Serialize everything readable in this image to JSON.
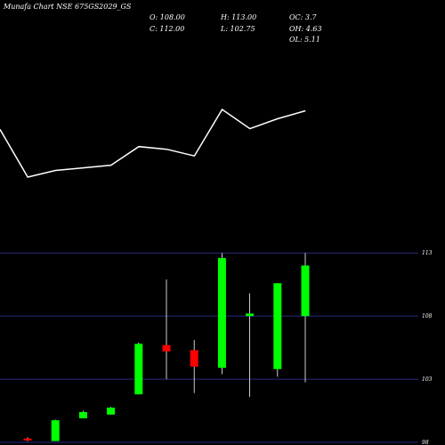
{
  "header": {
    "title": "Munafa Chart NSE 675GS2029_GS",
    "stats": [
      "O: 108.00",
      "H: 113.00",
      "OC: 3.7",
      "C: 112.00",
      "L: 102.75",
      "OH: 4.63",
      "",
      "",
      "OL: 5.11"
    ]
  },
  "colors": {
    "background": "#000000",
    "line": "#ffffff",
    "up": "#00ff00",
    "down": "#ff0000",
    "grid": "#2a2a80",
    "text": "#ffffff"
  },
  "chart_data": [
    {
      "type": "line",
      "title": "",
      "xlabel": "",
      "ylabel": "",
      "series": [
        {
          "values": [
            103.2,
            96.0,
            97.0,
            97.4,
            97.8,
            100.6,
            100.2,
            99.2,
            106.2,
            103.3,
            104.8,
            106.0
          ]
        }
      ]
    },
    {
      "type": "candlestick",
      "title": "",
      "xlabel": "",
      "ylabel": "",
      "ylim": [
        98,
        114
      ],
      "yticks": [
        113,
        108,
        103,
        98
      ],
      "ytick_labels": [
        "113",
        "108",
        "103",
        "98"
      ],
      "candles": [
        {
          "open": 98.3,
          "high": 98.4,
          "low": 98.1,
          "close": 98.15,
          "dir": "down"
        },
        {
          "open": 98.1,
          "high": 99.8,
          "low": 98.1,
          "close": 99.75,
          "dir": "up"
        },
        {
          "open": 99.9,
          "high": 100.5,
          "low": 99.9,
          "close": 100.4,
          "dir": "up"
        },
        {
          "open": 100.2,
          "high": 100.8,
          "low": 100.2,
          "close": 100.75,
          "dir": "up"
        },
        {
          "open": 101.8,
          "high": 105.9,
          "low": 101.8,
          "close": 105.8,
          "dir": "up"
        },
        {
          "open": 105.7,
          "high": 110.9,
          "low": 103.0,
          "close": 105.2,
          "dir": "down"
        },
        {
          "open": 105.3,
          "high": 106.1,
          "low": 101.9,
          "close": 104.0,
          "dir": "down"
        },
        {
          "open": 103.9,
          "high": 113.0,
          "low": 103.4,
          "close": 112.6,
          "dir": "up"
        },
        {
          "open": 108.0,
          "high": 109.8,
          "low": 101.6,
          "close": 108.2,
          "dir": "up"
        },
        {
          "open": 103.8,
          "high": 110.6,
          "low": 103.2,
          "close": 110.6,
          "dir": "up"
        },
        {
          "open": 108.0,
          "high": 113.0,
          "low": 102.75,
          "close": 112.0,
          "dir": "up"
        }
      ]
    }
  ]
}
